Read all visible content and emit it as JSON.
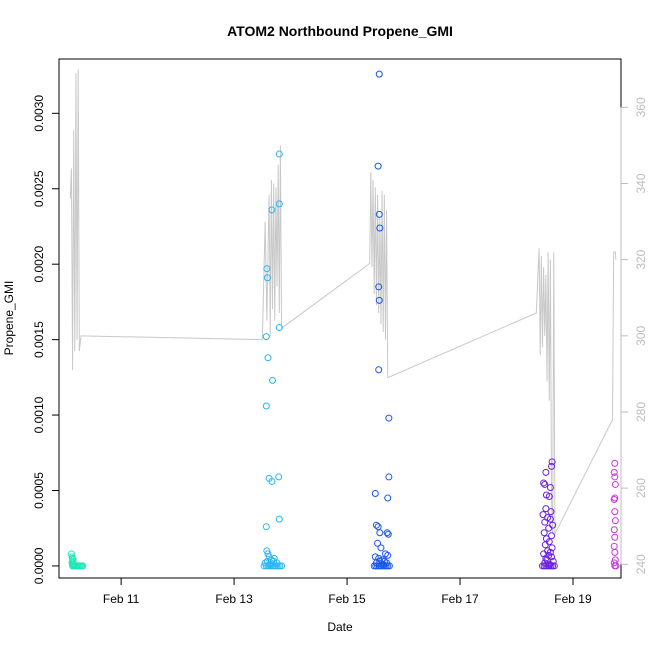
{
  "chart_data": {
    "type": "scatter",
    "title": "ATOM2 Northbound Propene_GMI",
    "xlabel": "Date",
    "ylabel": "Propene_GMI",
    "xlim": [
      9.9,
      19.85
    ],
    "ylim": [
      -8e-05,
      0.00336
    ],
    "y2lim": [
      236.4,
      372.7
    ],
    "x_ticks": [
      {
        "x": 11,
        "label": "Feb 11"
      },
      {
        "x": 13,
        "label": "Feb 13"
      },
      {
        "x": 15,
        "label": "Feb 15"
      },
      {
        "x": 17,
        "label": "Feb 17"
      },
      {
        "x": 19,
        "label": "Feb 19"
      }
    ],
    "y_ticks": [
      {
        "y": 0.0,
        "label": "0.0000"
      },
      {
        "y": 0.0005,
        "label": "0.0005"
      },
      {
        "y": 0.001,
        "label": "0.0010"
      },
      {
        "y": 0.0015,
        "label": "0.0015"
      },
      {
        "y": 0.002,
        "label": "0.0020"
      },
      {
        "y": 0.0025,
        "label": "0.0025"
      },
      {
        "y": 0.003,
        "label": "0.0030"
      }
    ],
    "y2_ticks": [
      {
        "y": 240,
        "label": "240"
      },
      {
        "y": 260,
        "label": "260"
      },
      {
        "y": 280,
        "label": "280"
      },
      {
        "y": 300,
        "label": "300"
      },
      {
        "y": 320,
        "label": "320"
      },
      {
        "y": 340,
        "label": "340"
      },
      {
        "y": 360,
        "label": "360"
      }
    ],
    "grid": false,
    "series": [
      {
        "color": "#1de9b6",
        "points": [
          [
            10.12,
            8e-05
          ],
          [
            10.13,
            6e-05
          ],
          [
            10.14,
            5e-05
          ],
          [
            10.15,
            4e-05
          ],
          [
            10.14,
            3e-05
          ],
          [
            10.13,
            2e-05
          ],
          [
            10.15,
            1e-05
          ],
          [
            10.16,
            0.0
          ],
          [
            10.18,
            0.0
          ],
          [
            10.2,
            0.0
          ],
          [
            10.22,
            0.0
          ],
          [
            10.24,
            0.0
          ],
          [
            10.26,
            0.0
          ],
          [
            10.28,
            0.0
          ],
          [
            10.3,
            0.0
          ],
          [
            10.32,
            0.0
          ],
          [
            10.14,
            0.0
          ],
          [
            10.17,
            1e-05
          ]
        ]
      },
      {
        "color": "#29b6f6",
        "points": [
          [
            13.8,
            0.00273
          ],
          [
            13.8,
            0.0024
          ],
          [
            13.67,
            0.00236
          ],
          [
            13.58,
            0.00197
          ],
          [
            13.59,
            0.00191
          ],
          [
            13.8,
            0.00158
          ],
          [
            13.57,
            0.00152
          ],
          [
            13.6,
            0.00138
          ],
          [
            13.68,
            0.00123
          ],
          [
            13.57,
            0.00106
          ],
          [
            13.79,
            0.00059
          ],
          [
            13.62,
            0.00058
          ],
          [
            13.67,
            0.00056
          ],
          [
            13.8,
            0.00031
          ],
          [
            13.57,
            0.00026
          ],
          [
            13.58,
            0.0001
          ],
          [
            13.6,
            8e-05
          ],
          [
            13.62,
            6e-05
          ],
          [
            13.66,
            4e-05
          ],
          [
            13.7,
            3e-05
          ],
          [
            13.55,
            2e-05
          ],
          [
            13.57,
            0.0
          ],
          [
            13.6,
            0.0
          ],
          [
            13.63,
            0.0
          ],
          [
            13.66,
            0.0
          ],
          [
            13.69,
            0.0
          ],
          [
            13.72,
            0.0
          ],
          [
            13.75,
            0.0
          ],
          [
            13.78,
            0.0
          ],
          [
            13.81,
            0.0
          ],
          [
            13.84,
            0.0
          ],
          [
            13.76,
            2e-05
          ],
          [
            13.64,
            1e-05
          ],
          [
            13.71,
            5e-05
          ],
          [
            13.53,
            0.0
          ],
          [
            13.59,
            3e-05
          ]
        ]
      },
      {
        "color": "#1a56e8",
        "points": [
          [
            15.57,
            0.00326
          ],
          [
            15.55,
            0.00265
          ],
          [
            15.57,
            0.00233
          ],
          [
            15.58,
            0.00224
          ],
          [
            15.56,
            0.00185
          ],
          [
            15.57,
            0.00176
          ],
          [
            15.56,
            0.0013
          ],
          [
            15.74,
            0.00098
          ],
          [
            15.74,
            0.00059
          ],
          [
            15.5,
            0.00048
          ],
          [
            15.72,
            0.00045
          ],
          [
            15.52,
            0.00027
          ],
          [
            15.55,
            0.00026
          ],
          [
            15.58,
            0.00022
          ],
          [
            15.71,
            0.00022
          ],
          [
            15.73,
            0.00021
          ],
          [
            15.54,
            0.00015
          ],
          [
            15.6,
            0.00012
          ],
          [
            15.68,
            8e-05
          ],
          [
            15.72,
            7e-05
          ],
          [
            15.5,
            6e-05
          ],
          [
            15.56,
            5e-05
          ],
          [
            15.62,
            4e-05
          ],
          [
            15.66,
            3e-05
          ],
          [
            15.52,
            2e-05
          ],
          [
            15.48,
            0.0
          ],
          [
            15.51,
            0.0
          ],
          [
            15.54,
            0.0
          ],
          [
            15.57,
            0.0
          ],
          [
            15.6,
            0.0
          ],
          [
            15.63,
            0.0
          ],
          [
            15.66,
            0.0
          ],
          [
            15.69,
            0.0
          ],
          [
            15.72,
            0.0
          ],
          [
            15.75,
            0.0
          ],
          [
            15.7,
            2e-05
          ],
          [
            15.64,
            1e-05
          ],
          [
            15.58,
            3e-05
          ]
        ]
      },
      {
        "color": "#6a1fe0",
        "points": [
          [
            18.63,
            0.00069
          ],
          [
            18.62,
            0.00066
          ],
          [
            18.52,
            0.00062
          ],
          [
            18.48,
            0.00055
          ],
          [
            18.5,
            0.00054
          ],
          [
            18.6,
            0.00052
          ],
          [
            18.53,
            0.00047
          ],
          [
            18.58,
            0.00046
          ],
          [
            18.52,
            0.00038
          ],
          [
            18.61,
            0.00036
          ],
          [
            18.47,
            0.00034
          ],
          [
            18.55,
            0.00032
          ],
          [
            18.6,
            0.00031
          ],
          [
            18.5,
            0.00029
          ],
          [
            18.64,
            0.00027
          ],
          [
            18.57,
            0.00025
          ],
          [
            18.49,
            0.00022
          ],
          [
            18.62,
            0.0002
          ],
          [
            18.53,
            0.00018
          ],
          [
            18.58,
            0.00016
          ],
          [
            18.51,
            0.00014
          ],
          [
            18.63,
            0.00012
          ],
          [
            18.55,
            0.0001
          ],
          [
            18.6,
            9e-05
          ],
          [
            18.48,
            8e-05
          ],
          [
            18.57,
            7e-05
          ],
          [
            18.62,
            6e-05
          ],
          [
            18.52,
            5e-05
          ],
          [
            18.54,
            4e-05
          ],
          [
            18.65,
            3e-05
          ],
          [
            18.46,
            0.0
          ],
          [
            18.49,
            0.0
          ],
          [
            18.52,
            0.0
          ],
          [
            18.55,
            0.0
          ],
          [
            18.58,
            0.0
          ],
          [
            18.61,
            0.0
          ],
          [
            18.64,
            0.0
          ],
          [
            18.67,
            0.0
          ],
          [
            18.5,
            2e-05
          ],
          [
            18.59,
            1e-05
          ]
        ]
      },
      {
        "color": "#cc33e6",
        "points": [
          [
            19.74,
            0.00068
          ],
          [
            19.73,
            0.00062
          ],
          [
            19.74,
            0.00059
          ],
          [
            19.75,
            0.00054
          ],
          [
            19.74,
            0.00045
          ],
          [
            19.73,
            0.00044
          ],
          [
            19.74,
            0.00036
          ],
          [
            19.75,
            0.0003
          ],
          [
            19.73,
            0.00024
          ],
          [
            19.74,
            0.00019
          ],
          [
            19.73,
            0.00013
          ],
          [
            19.74,
            9e-05
          ],
          [
            19.75,
            4e-05
          ],
          [
            19.73,
            2e-05
          ],
          [
            19.74,
            0.0
          ],
          [
            19.76,
            0.0
          ]
        ]
      }
    ],
    "line_series": {
      "axis": "right",
      "color": "#c8c8c8",
      "points": [
        [
          10.1,
          336
        ],
        [
          10.12,
          344
        ],
        [
          10.14,
          291
        ],
        [
          10.16,
          354
        ],
        [
          10.18,
          296
        ],
        [
          10.2,
          369
        ],
        [
          10.22,
          299
        ],
        [
          10.24,
          370
        ],
        [
          10.26,
          296
        ],
        [
          10.29,
          300
        ],
        [
          13.5,
          299
        ],
        [
          13.55,
          330
        ],
        [
          13.58,
          304
        ],
        [
          13.6,
          322
        ],
        [
          13.62,
          337
        ],
        [
          13.64,
          300
        ],
        [
          13.66,
          341
        ],
        [
          13.68,
          307
        ],
        [
          13.7,
          340
        ],
        [
          13.72,
          304
        ],
        [
          13.74,
          339
        ],
        [
          13.76,
          313
        ],
        [
          13.78,
          345
        ],
        [
          13.8,
          306
        ],
        [
          13.82,
          350
        ],
        [
          13.84,
          302
        ],
        [
          15.4,
          319
        ],
        [
          15.42,
          343
        ],
        [
          15.44,
          318
        ],
        [
          15.46,
          341
        ],
        [
          15.48,
          311
        ],
        [
          15.5,
          339
        ],
        [
          15.52,
          308
        ],
        [
          15.54,
          337
        ],
        [
          15.56,
          306
        ],
        [
          15.58,
          331
        ],
        [
          15.6,
          303
        ],
        [
          15.62,
          338
        ],
        [
          15.64,
          301
        ],
        [
          15.66,
          337
        ],
        [
          15.68,
          299
        ],
        [
          15.7,
          333
        ],
        [
          15.72,
          289
        ],
        [
          18.35,
          306
        ],
        [
          18.4,
          323
        ],
        [
          18.42,
          295
        ],
        [
          18.44,
          321
        ],
        [
          18.46,
          297
        ],
        [
          18.48,
          318
        ],
        [
          18.5,
          300
        ],
        [
          18.52,
          316
        ],
        [
          18.54,
          288
        ],
        [
          18.56,
          322
        ],
        [
          18.58,
          283
        ],
        [
          18.6,
          320
        ],
        [
          18.62,
          257
        ],
        [
          18.64,
          248
        ],
        [
          18.66,
          322
        ],
        [
          18.68,
          248
        ],
        [
          19.7,
          278
        ],
        [
          19.72,
          322
        ],
        [
          19.75,
          322
        ],
        [
          19.76,
          320
        ]
      ]
    }
  }
}
